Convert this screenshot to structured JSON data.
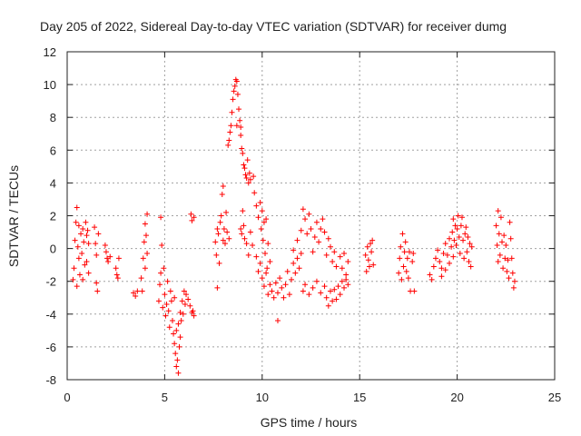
{
  "chart_data": {
    "type": "scatter",
    "title": "Day 205 of 2022, Sidereal Day-to-day VTEC variation (SDTVAR) for receiver dumg",
    "xlabel": "GPS time / hours",
    "ylabel": "SDTVAR / TECUs",
    "xlim": [
      0,
      25
    ],
    "ylim": [
      -8,
      12
    ],
    "xticks": [
      0,
      5,
      10,
      15,
      20,
      25
    ],
    "yticks": [
      -8,
      -6,
      -4,
      -2,
      0,
      2,
      4,
      6,
      8,
      10,
      12
    ],
    "xtick_labels": [
      "0",
      "5",
      "10",
      "15",
      "20",
      "25"
    ],
    "ytick_labels": [
      "-8",
      "-6",
      "-4",
      "-2",
      "0",
      "2",
      "4",
      "6",
      "8",
      "10",
      "12"
    ],
    "grid": true,
    "marker": "+",
    "color": "#ff0000",
    "series": [
      {
        "name": "SDTVAR",
        "points": [
          [
            0.3,
            -1.9
          ],
          [
            0.35,
            -1.2
          ],
          [
            0.4,
            0.5
          ],
          [
            0.45,
            1.6
          ],
          [
            0.5,
            2.5
          ],
          [
            0.5,
            -2.3
          ],
          [
            0.55,
            0.1
          ],
          [
            0.6,
            -0.6
          ],
          [
            0.6,
            1.4
          ],
          [
            0.65,
            -1.6
          ],
          [
            0.7,
            0.9
          ],
          [
            0.75,
            -0.3
          ],
          [
            0.8,
            1.2
          ],
          [
            0.8,
            -1.9
          ],
          [
            0.85,
            0.4
          ],
          [
            0.9,
            -1.0
          ],
          [
            0.95,
            1.6
          ],
          [
            1.0,
            0.8
          ],
          [
            1.0,
            -0.8
          ],
          [
            1.05,
            1.1
          ],
          [
            1.1,
            0.3
          ],
          [
            1.1,
            -1.5
          ],
          [
            1.4,
            1.3
          ],
          [
            1.45,
            0.3
          ],
          [
            1.5,
            -0.4
          ],
          [
            1.5,
            -2.1
          ],
          [
            1.55,
            -2.6
          ],
          [
            1.6,
            0.9
          ],
          [
            1.95,
            0.2
          ],
          [
            2.0,
            -0.2
          ],
          [
            2.05,
            -0.6
          ],
          [
            2.1,
            -0.8
          ],
          [
            2.2,
            -0.5
          ],
          [
            2.5,
            -1.2
          ],
          [
            2.55,
            -1.6
          ],
          [
            2.6,
            -1.8
          ],
          [
            2.65,
            -0.6
          ],
          [
            3.4,
            -2.7
          ],
          [
            3.5,
            -2.9
          ],
          [
            3.6,
            -2.6
          ],
          [
            3.8,
            -1.8
          ],
          [
            3.85,
            -2.6
          ],
          [
            3.9,
            -0.6
          ],
          [
            3.95,
            0.4
          ],
          [
            4.0,
            1.5
          ],
          [
            4.0,
            -1.2
          ],
          [
            4.05,
            0.8
          ],
          [
            4.1,
            2.1
          ],
          [
            4.1,
            -0.3
          ],
          [
            4.7,
            -3.2
          ],
          [
            4.75,
            -2.2
          ],
          [
            4.8,
            -1.5
          ],
          [
            4.8,
            1.9
          ],
          [
            4.85,
            0.2
          ],
          [
            4.9,
            -3.6
          ],
          [
            4.95,
            -1.2
          ],
          [
            5.0,
            -2.8
          ],
          [
            5.05,
            -4.1
          ],
          [
            5.1,
            -3.4
          ],
          [
            5.15,
            -2.0
          ],
          [
            5.2,
            -3.8
          ],
          [
            5.25,
            -4.8
          ],
          [
            5.3,
            -2.6
          ],
          [
            5.35,
            -3.2
          ],
          [
            5.4,
            -4.4
          ],
          [
            5.45,
            -5.2
          ],
          [
            5.5,
            -3.0
          ],
          [
            5.5,
            -5.8
          ],
          [
            5.55,
            -6.4
          ],
          [
            5.6,
            -7.2
          ],
          [
            5.6,
            -5.0
          ],
          [
            5.65,
            -6.8
          ],
          [
            5.7,
            -7.6
          ],
          [
            5.7,
            -4.6
          ],
          [
            5.75,
            -6.0
          ],
          [
            5.8,
            -5.4
          ],
          [
            5.8,
            -3.9
          ],
          [
            5.85,
            -4.4
          ],
          [
            5.9,
            -3.2
          ],
          [
            5.95,
            -4.0
          ],
          [
            6.0,
            -2.6
          ],
          [
            6.05,
            -3.4
          ],
          [
            6.1,
            -2.8
          ],
          [
            6.2,
            -3.1
          ],
          [
            6.3,
            -3.5
          ],
          [
            6.4,
            -3.9
          ],
          [
            6.45,
            -3.8
          ],
          [
            6.5,
            -4.1
          ],
          [
            6.35,
            2.1
          ],
          [
            6.4,
            1.7
          ],
          [
            6.5,
            1.9
          ],
          [
            7.6,
            0.4
          ],
          [
            7.65,
            -0.4
          ],
          [
            7.7,
            -2.4
          ],
          [
            7.7,
            1.2
          ],
          [
            7.75,
            0.9
          ],
          [
            7.8,
            -0.9
          ],
          [
            7.85,
            1.6
          ],
          [
            7.9,
            2.0
          ],
          [
            7.95,
            3.3
          ],
          [
            8.0,
            0.5
          ],
          [
            8.0,
            3.8
          ],
          [
            8.05,
            1.2
          ],
          [
            8.1,
            0.3
          ],
          [
            8.15,
            2.2
          ],
          [
            8.2,
            1.0
          ],
          [
            8.3,
            0.6
          ],
          [
            8.25,
            6.3
          ],
          [
            8.3,
            6.6
          ],
          [
            8.35,
            7.1
          ],
          [
            8.4,
            7.5
          ],
          [
            8.45,
            8.3
          ],
          [
            8.5,
            9.1
          ],
          [
            8.55,
            9.6
          ],
          [
            8.6,
            9.9
          ],
          [
            8.65,
            10.3
          ],
          [
            8.7,
            10.2
          ],
          [
            8.7,
            7.5
          ],
          [
            8.75,
            9.4
          ],
          [
            8.8,
            8.5
          ],
          [
            8.85,
            7.8
          ],
          [
            8.9,
            7.4
          ],
          [
            8.9,
            6.9
          ],
          [
            8.95,
            6.1
          ],
          [
            9.0,
            5.8
          ],
          [
            9.05,
            5.1
          ],
          [
            9.1,
            4.9
          ],
          [
            9.15,
            4.5
          ],
          [
            9.2,
            4.3
          ],
          [
            9.25,
            5.4
          ],
          [
            9.3,
            4.0
          ],
          [
            9.35,
            4.6
          ],
          [
            9.4,
            4.2
          ],
          [
            8.9,
            1.2
          ],
          [
            8.95,
            0.9
          ],
          [
            9.0,
            2.3
          ],
          [
            9.05,
            1.4
          ],
          [
            9.1,
            0.6
          ],
          [
            9.2,
            0.3
          ],
          [
            9.3,
            -0.4
          ],
          [
            9.4,
            1.0
          ],
          [
            9.5,
            0.2
          ],
          [
            9.55,
            4.4
          ],
          [
            9.6,
            3.4
          ],
          [
            9.7,
            2.6
          ],
          [
            9.8,
            1.9
          ],
          [
            9.9,
            2.8
          ],
          [
            9.95,
            1.2
          ],
          [
            10.0,
            2.3
          ],
          [
            10.05,
            0.5
          ],
          [
            10.1,
            1.6
          ],
          [
            10.15,
            -0.3
          ],
          [
            10.2,
            1.8
          ],
          [
            10.25,
            -1.2
          ],
          [
            10.3,
            0.3
          ],
          [
            10.4,
            -0.8
          ],
          [
            9.7,
            -0.5
          ],
          [
            9.8,
            -1.4
          ],
          [
            9.9,
            -0.9
          ],
          [
            10.0,
            -1.8
          ],
          [
            10.1,
            -2.3
          ],
          [
            10.2,
            -1.5
          ],
          [
            10.3,
            -2.8
          ],
          [
            10.4,
            -2.2
          ],
          [
            10.5,
            -2.6
          ],
          [
            10.6,
            -3.0
          ],
          [
            10.7,
            -2.1
          ],
          [
            10.8,
            -2.7
          ],
          [
            10.9,
            -1.8
          ],
          [
            11.0,
            -2.4
          ],
          [
            11.1,
            -3.0
          ],
          [
            11.2,
            -2.2
          ],
          [
            11.3,
            -1.4
          ],
          [
            11.4,
            -2.8
          ],
          [
            11.5,
            -1.9
          ],
          [
            11.6,
            -0.9
          ],
          [
            11.7,
            -1.5
          ],
          [
            11.8,
            -0.6
          ],
          [
            11.9,
            -1.2
          ],
          [
            12.0,
            -0.3
          ],
          [
            10.8,
            -4.4
          ],
          [
            11.6,
            -0.1
          ],
          [
            11.8,
            0.5
          ],
          [
            12.0,
            1.1
          ],
          [
            12.1,
            2.4
          ],
          [
            12.2,
            1.8
          ],
          [
            12.3,
            0.9
          ],
          [
            12.4,
            2.1
          ],
          [
            12.5,
            1.2
          ],
          [
            12.6,
            -0.2
          ],
          [
            12.7,
            0.7
          ],
          [
            12.8,
            1.6
          ],
          [
            12.9,
            0.4
          ],
          [
            13.0,
            1.2
          ],
          [
            13.1,
            1.8
          ],
          [
            13.2,
            1.0
          ],
          [
            13.3,
            -0.4
          ],
          [
            13.4,
            0.6
          ],
          [
            13.5,
            0.1
          ],
          [
            13.6,
            -0.8
          ],
          [
            13.7,
            -0.2
          ],
          [
            13.8,
            -1.1
          ],
          [
            14.0,
            -0.5
          ],
          [
            14.1,
            -1.2
          ],
          [
            14.2,
            -0.3
          ],
          [
            14.3,
            -1.6
          ],
          [
            14.4,
            -0.8
          ],
          [
            12.1,
            -2.6
          ],
          [
            12.2,
            -2.2
          ],
          [
            12.4,
            -2.8
          ],
          [
            12.6,
            -2.4
          ],
          [
            12.8,
            -2.0
          ],
          [
            13.0,
            -2.7
          ],
          [
            13.2,
            -2.3
          ],
          [
            13.3,
            -3.0
          ],
          [
            13.4,
            -3.5
          ],
          [
            13.5,
            -2.6
          ],
          [
            13.6,
            -3.2
          ],
          [
            13.7,
            -2.5
          ],
          [
            13.8,
            -3.1
          ],
          [
            13.9,
            -2.3
          ],
          [
            14.0,
            -2.8
          ],
          [
            14.1,
            -2.0
          ],
          [
            14.2,
            -2.4
          ],
          [
            14.3,
            -1.9
          ],
          [
            14.4,
            -2.2
          ],
          [
            15.3,
            -0.4
          ],
          [
            15.35,
            -1.4
          ],
          [
            15.4,
            0.1
          ],
          [
            15.45,
            -0.7
          ],
          [
            15.5,
            -1.1
          ],
          [
            15.55,
            0.3
          ],
          [
            15.6,
            -0.2
          ],
          [
            15.65,
            0.5
          ],
          [
            15.7,
            -1.0
          ],
          [
            17.0,
            -1.5
          ],
          [
            17.05,
            -0.6
          ],
          [
            17.1,
            0.1
          ],
          [
            17.15,
            -1.9
          ],
          [
            17.2,
            0.9
          ],
          [
            17.25,
            -1.1
          ],
          [
            17.3,
            -0.2
          ],
          [
            17.35,
            0.4
          ],
          [
            17.4,
            -1.4
          ],
          [
            17.45,
            -0.6
          ],
          [
            17.5,
            -1.8
          ],
          [
            17.55,
            -0.2
          ],
          [
            17.6,
            -2.6
          ],
          [
            17.7,
            -0.8
          ],
          [
            17.75,
            -0.3
          ],
          [
            17.8,
            -2.6
          ],
          [
            18.6,
            -1.6
          ],
          [
            18.7,
            -1.9
          ],
          [
            18.8,
            -1.1
          ],
          [
            18.9,
            -0.6
          ],
          [
            19.0,
            -0.1
          ],
          [
            19.1,
            -0.8
          ],
          [
            19.2,
            -1.2
          ],
          [
            19.3,
            -0.3
          ],
          [
            19.4,
            0.3
          ],
          [
            19.5,
            -0.4
          ],
          [
            19.6,
            0.6
          ],
          [
            19.7,
            0.1
          ],
          [
            19.75,
            1.0
          ],
          [
            19.8,
            1.8
          ],
          [
            19.85,
            0.5
          ],
          [
            19.9,
            1.4
          ],
          [
            19.95,
            0.2
          ],
          [
            20.0,
            1.2
          ],
          [
            20.05,
            2.0
          ],
          [
            20.1,
            0.7
          ],
          [
            20.15,
            -0.3
          ],
          [
            20.2,
            1.4
          ],
          [
            20.25,
            1.9
          ],
          [
            20.3,
            0.5
          ],
          [
            20.35,
            -0.6
          ],
          [
            20.4,
            0.9
          ],
          [
            20.45,
            1.3
          ],
          [
            20.5,
            -0.2
          ],
          [
            20.55,
            0.7
          ],
          [
            20.6,
            -0.8
          ],
          [
            20.65,
            0.3
          ],
          [
            20.7,
            -1.1
          ],
          [
            20.75,
            0.1
          ],
          [
            19.2,
            -1.7
          ],
          [
            19.4,
            -1.3
          ],
          [
            19.6,
            -0.9
          ],
          [
            19.8,
            -0.5
          ],
          [
            22.0,
            1.4
          ],
          [
            22.05,
            0.2
          ],
          [
            22.1,
            2.3
          ],
          [
            22.1,
            -0.8
          ],
          [
            22.15,
            0.9
          ],
          [
            22.2,
            -0.4
          ],
          [
            22.25,
            1.9
          ],
          [
            22.3,
            0.4
          ],
          [
            22.35,
            -1.2
          ],
          [
            22.4,
            0.8
          ],
          [
            22.45,
            -0.6
          ],
          [
            22.5,
            0.2
          ],
          [
            22.55,
            -1.4
          ],
          [
            22.6,
            -0.7
          ],
          [
            22.65,
            -1.8
          ],
          [
            22.7,
            1.6
          ],
          [
            22.75,
            0.6
          ],
          [
            22.8,
            -0.6
          ],
          [
            22.85,
            -1.5
          ],
          [
            22.9,
            -2.4
          ],
          [
            22.95,
            -2.0
          ]
        ]
      }
    ]
  }
}
